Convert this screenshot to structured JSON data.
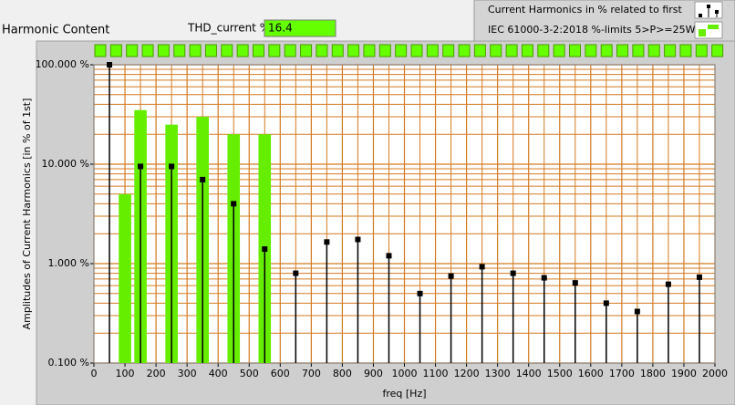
{
  "header": {
    "title": "Harmonic Content",
    "thd_label": "THD_current %",
    "thd_value": "16.4"
  },
  "chart_data": {
    "type": "stem",
    "xlabel": "freq [Hz]",
    "ylabel": "Amplitudes of Current Harmonics [in % of 1st]",
    "xlim": [
      0,
      2000
    ],
    "xticks": [
      0,
      100,
      200,
      300,
      400,
      500,
      600,
      700,
      800,
      900,
      1000,
      1100,
      1200,
      1300,
      1400,
      1500,
      1600,
      1700,
      1800,
      1900,
      2000
    ],
    "ylim": [
      0.1,
      100
    ],
    "yticks": [
      {
        "value": 0.1,
        "label": "0.100 %"
      },
      {
        "value": 1,
        "label": "1.000 %"
      },
      {
        "value": 10,
        "label": "10.000 %"
      },
      {
        "value": 100,
        "label": "100.000 %"
      }
    ],
    "log_y": true,
    "grid": true,
    "legend": "top-right",
    "series": [
      {
        "name": "IEC 61000-3-2:2018 %-limits 5>P>=25W",
        "mark": "bar",
        "color": "#66ee00",
        "x": [
          100,
          150,
          250,
          350,
          450,
          550
        ],
        "values": [
          5,
          35,
          25,
          30,
          20,
          20
        ]
      },
      {
        "name": "Current Harmonics in % related to first",
        "mark": "stem",
        "color": "#000000",
        "x": [
          50,
          150,
          250,
          350,
          450,
          550,
          650,
          750,
          850,
          950,
          1050,
          1150,
          1250,
          1350,
          1450,
          1550,
          1650,
          1750,
          1850,
          1950
        ],
        "values": [
          100,
          9.5,
          9.5,
          7,
          4,
          1.4,
          0.8,
          1.65,
          1.75,
          1.2,
          0.5,
          0.75,
          0.93,
          0.8,
          0.72,
          0.64,
          0.4,
          0.33,
          0.62,
          0.73
        ]
      }
    ]
  }
}
